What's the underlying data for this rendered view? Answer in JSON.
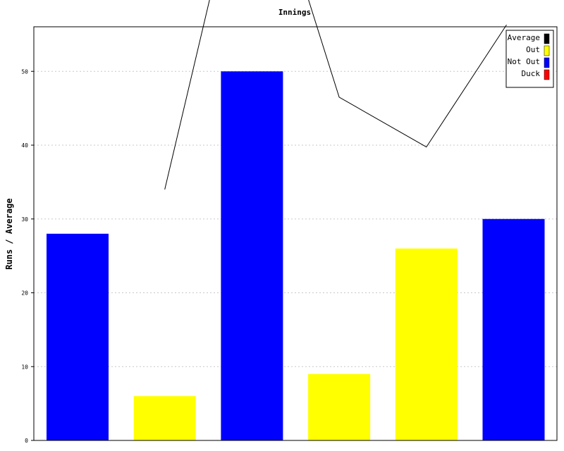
{
  "chart_data": {
    "type": "bar",
    "title": "Innings",
    "xlabel": "",
    "ylabel": "Runs / Average",
    "ylim": [
      0,
      56
    ],
    "yticks": [
      0,
      10,
      20,
      30,
      40,
      50
    ],
    "grid": true,
    "legend_position": "top-right",
    "legend": [
      {
        "label": "Average",
        "color": "#000000"
      },
      {
        "label": "Out",
        "color": "#ffff00"
      },
      {
        "label": "Not Out",
        "color": "#0000ff"
      },
      {
        "label": "Duck",
        "color": "#ff0000"
      }
    ],
    "bars": [
      {
        "value": 28,
        "status": "Not Out",
        "color": "#0000ff"
      },
      {
        "value": 6,
        "status": "Out",
        "color": "#ffff00"
      },
      {
        "value": 50,
        "status": "Not Out",
        "color": "#0000ff"
      },
      {
        "value": 9,
        "status": "Out",
        "color": "#ffff00"
      },
      {
        "value": 26,
        "status": "Out",
        "color": "#ffff00"
      },
      {
        "value": 30,
        "status": "Not Out",
        "color": "#0000ff"
      }
    ],
    "average_line": [
      null,
      34,
      84,
      46.5,
      39.75,
      56.3
    ]
  }
}
